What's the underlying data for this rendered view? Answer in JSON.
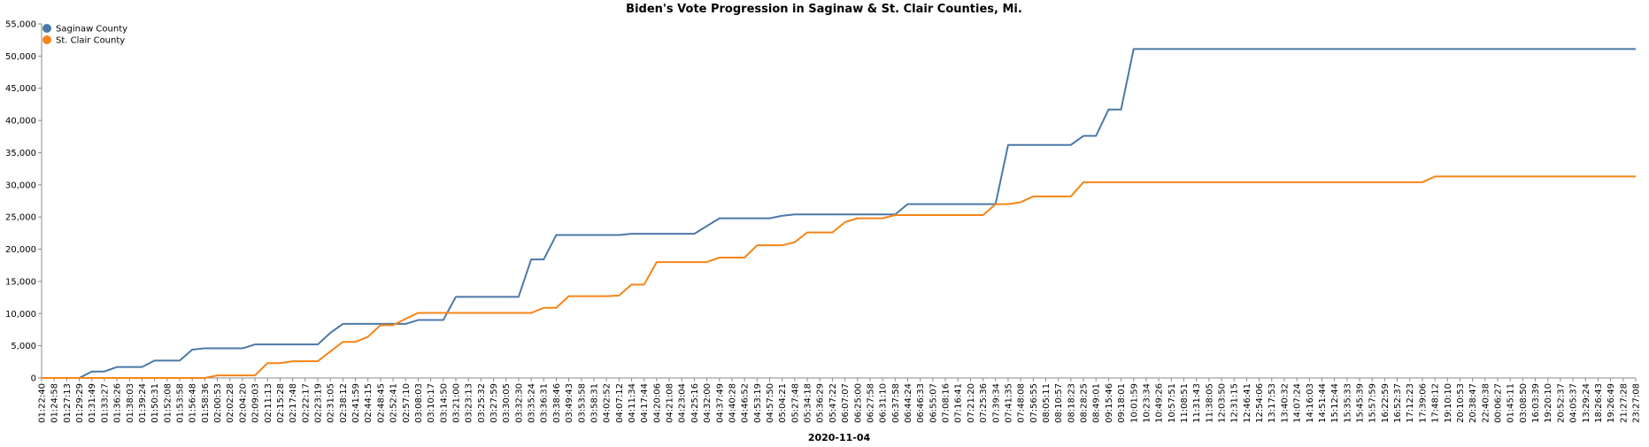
{
  "chart_data": {
    "type": "line",
    "title": "Biden's Vote Progression in Saginaw & St. Clair Counties, Mi.",
    "xlabel": "2020-11-04",
    "ylabel": "",
    "ylim": [
      0,
      55000
    ],
    "yticks": [
      "0",
      "5,000",
      "10,000",
      "15,000",
      "20,000",
      "25,000",
      "30,000",
      "35,000",
      "40,000",
      "45,000",
      "50,000",
      "55,000"
    ],
    "x": [
      "01:22:40",
      "01:24:58",
      "01:27:13",
      "01:29:29",
      "01:31:49",
      "01:33:27",
      "01:36:26",
      "01:38:03",
      "01:39:24",
      "01:50:31",
      "01:52:08",
      "01:53:58",
      "01:56:48",
      "01:58:36",
      "02:00:53",
      "02:02:28",
      "02:04:20",
      "02:09:03",
      "02:11:13",
      "02:15:28",
      "02:17:48",
      "02:22:17",
      "02:23:19",
      "02:31:05",
      "02:38:12",
      "02:41:59",
      "02:44:15",
      "02:48:45",
      "02:52:41",
      "02:57:10",
      "03:08:03",
      "03:10:17",
      "03:14:50",
      "03:21:00",
      "03:23:13",
      "03:25:32",
      "03:27:59",
      "03:30:05",
      "03:32:30",
      "03:35:24",
      "03:36:31",
      "03:38:46",
      "03:49:43",
      "03:53:58",
      "03:58:31",
      "04:02:52",
      "04:07:12",
      "04:11:34",
      "04:17:44",
      "04:20:06",
      "04:21:08",
      "04:23:04",
      "04:25:16",
      "04:32:00",
      "04:37:49",
      "04:40:28",
      "04:46:52",
      "04:53:19",
      "04:57:50",
      "05:04:21",
      "05:27:48",
      "05:34:18",
      "05:36:29",
      "05:47:22",
      "06:07:07",
      "06:25:00",
      "06:27:58",
      "06:31:10",
      "06:37:58",
      "06:44:24",
      "06:46:33",
      "06:55:07",
      "07:08:16",
      "07:16:41",
      "07:21:20",
      "07:25:36",
      "07:39:34",
      "07:41:35",
      "07:48:08",
      "07:56:55",
      "08:05:11",
      "08:10:57",
      "08:18:23",
      "08:28:25",
      "08:49:01",
      "09:15:46",
      "09:18:01",
      "10:01:59",
      "10:23:34",
      "10:49:26",
      "10:57:51",
      "11:08:51",
      "11:31:43",
      "11:38:05",
      "12:03:50",
      "12:31:15",
      "12:46:41",
      "12:54:06",
      "13:17:53",
      "13:40:32",
      "14:07:24",
      "14:16:03",
      "14:51:44",
      "15:12:44",
      "15:35:33",
      "15:45:39",
      "15:57:59",
      "16:22:59",
      "16:52:37",
      "17:12:23",
      "17:39:06",
      "17:48:12",
      "19:10:10",
      "20:10:53",
      "20:38:47",
      "22:40:38",
      "00:06:27",
      "01:45:11",
      "03:08:50",
      "16:03:39",
      "19:20:10",
      "20:52:37",
      "04:05:37",
      "13:29:24",
      "18:26:43",
      "19:26:49",
      "21:27:28",
      "23:27:08"
    ],
    "series": [
      {
        "name": "Saginaw County",
        "color": "#4c78a8",
        "values": [
          0,
          0,
          0,
          0,
          1000,
          1000,
          1700,
          1700,
          1700,
          2700,
          2700,
          2700,
          4400,
          4600,
          4600,
          4600,
          4600,
          5200,
          5200,
          5200,
          5200,
          5200,
          5200,
          7000,
          8400,
          8400,
          8400,
          8400,
          8400,
          8400,
          9000,
          9000,
          9000,
          12600,
          12600,
          12600,
          12600,
          12600,
          12600,
          18400,
          18400,
          22200,
          22200,
          22200,
          22200,
          22200,
          22200,
          22400,
          22400,
          22400,
          22400,
          22400,
          22400,
          23600,
          24800,
          24800,
          24800,
          24800,
          24800,
          25200,
          25400,
          25400,
          25400,
          25400,
          25400,
          25400,
          25400,
          25400,
          25400,
          27000,
          27000,
          27000,
          27000,
          27000,
          27000,
          27000,
          27000,
          36200,
          36200,
          36200,
          36200,
          36200,
          36200,
          37600,
          37600,
          41700,
          41700,
          51100,
          51100,
          51100,
          51100,
          51100,
          51100,
          51100,
          51100,
          51100,
          51100,
          51100,
          51100,
          51100,
          51100,
          51100,
          51100,
          51100,
          51100,
          51100,
          51100,
          51100,
          51100,
          51100,
          51100,
          51100,
          51100,
          51100,
          51100,
          51100,
          51100,
          51100,
          51100,
          51100,
          51100,
          51100,
          51100,
          51100,
          51100,
          51100,
          51100,
          51100
        ]
      },
      {
        "name": "St. Clair County",
        "color": "#f58518",
        "values": [
          0,
          0,
          0,
          0,
          0,
          0,
          0,
          0,
          0,
          0,
          0,
          0,
          0,
          0,
          400,
          400,
          400,
          400,
          2300,
          2300,
          2600,
          2600,
          2600,
          4100,
          5600,
          5600,
          6400,
          8200,
          8200,
          9200,
          10100,
          10100,
          10100,
          10100,
          10100,
          10100,
          10100,
          10100,
          10100,
          10100,
          10900,
          10900,
          12700,
          12700,
          12700,
          12700,
          12800,
          14500,
          14500,
          18000,
          18000,
          18000,
          18000,
          18000,
          18700,
          18700,
          18700,
          20600,
          20600,
          20600,
          21100,
          22600,
          22600,
          22600,
          24200,
          24800,
          24800,
          24800,
          25300,
          25300,
          25300,
          25300,
          25300,
          25300,
          25300,
          25300,
          27000,
          27000,
          27300,
          28200,
          28200,
          28200,
          28200,
          30400,
          30400,
          30400,
          30400,
          30400,
          30400,
          30400,
          30400,
          30400,
          30400,
          30400,
          30400,
          30400,
          30400,
          30400,
          30400,
          30400,
          30400,
          30400,
          30400,
          30400,
          30400,
          30400,
          30400,
          30400,
          30400,
          30400,
          30400,
          31300,
          31300,
          31300,
          31300,
          31300,
          31300,
          31300,
          31300,
          31300,
          31300,
          31300,
          31300,
          31300,
          31300,
          31300,
          31300,
          31300
        ]
      }
    ],
    "legend": "top-left",
    "grid": false
  }
}
